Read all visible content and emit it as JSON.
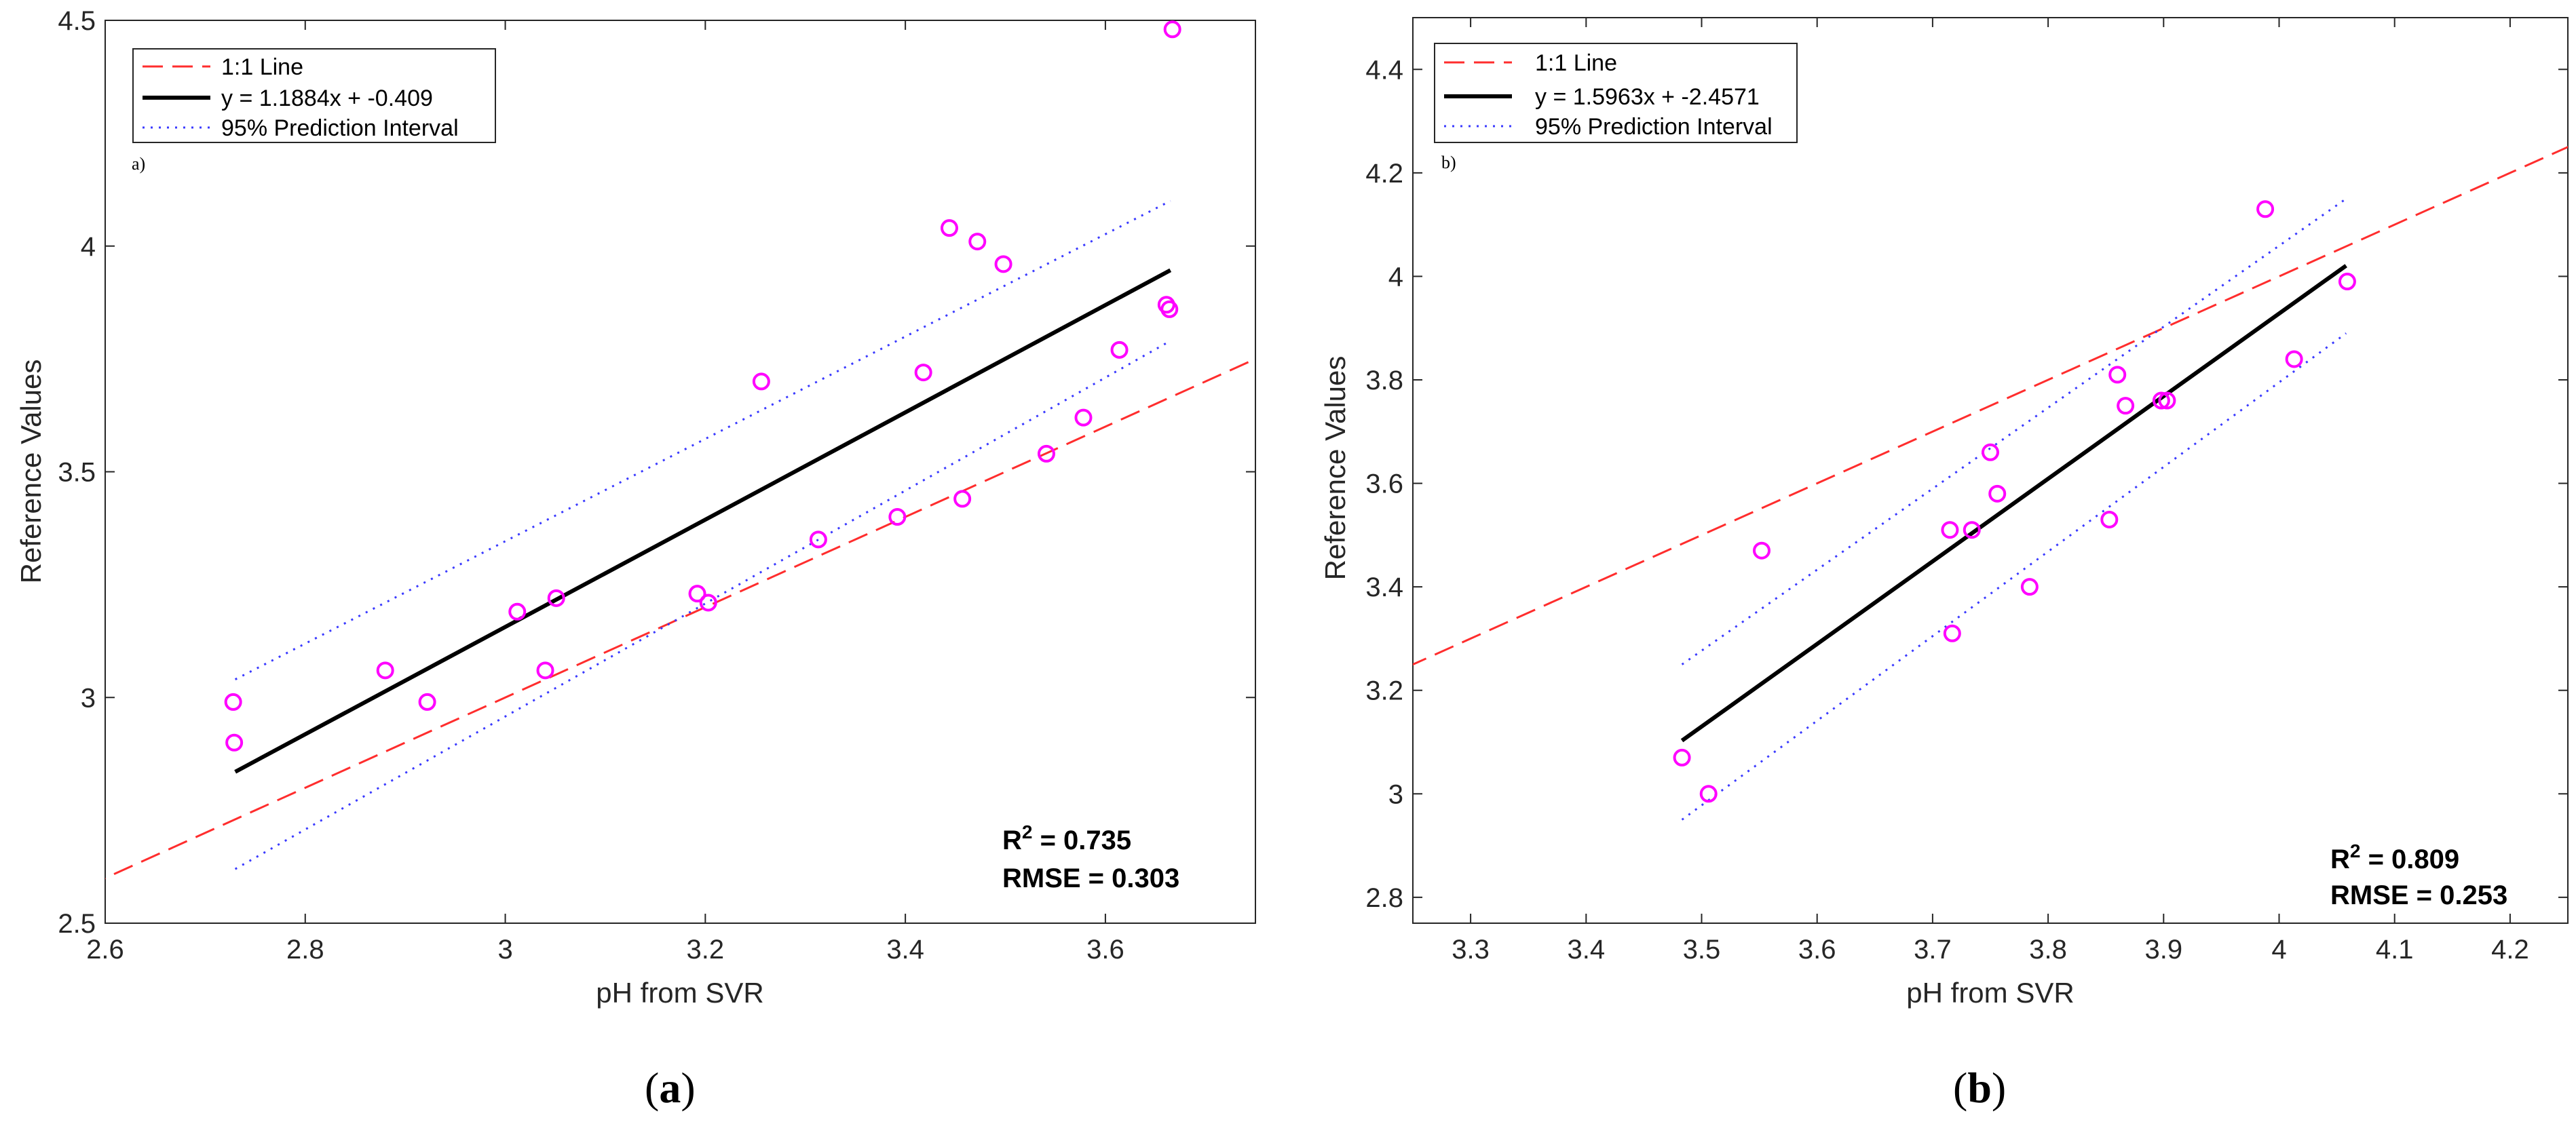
{
  "chart_data": [
    {
      "type": "scatter",
      "panel_tag": "a)",
      "caption_open": "(",
      "caption": "a",
      "caption_close": ")",
      "xlabel": "pH from SVR",
      "ylabel": "Reference Values",
      "xlim": [
        2.6,
        3.75
      ],
      "ylim": [
        2.5,
        4.5
      ],
      "xticks": [
        2.6,
        2.8,
        3.0,
        3.2,
        3.4,
        3.6
      ],
      "xtick_labels": [
        "2.6",
        "2.8",
        "3",
        "3.2",
        "3.4",
        "3.6"
      ],
      "yticks": [
        2.5,
        3.0,
        3.5,
        4.0,
        4.5
      ],
      "ytick_labels": [
        "2.5",
        "3",
        "3.5",
        "4",
        "4.5"
      ],
      "legend": [
        "1:1 Line",
        "y = 1.1884x + -0.409",
        "95% Prediction Interval"
      ],
      "legend_position": "top-left",
      "r2_label": "R",
      "r2_sup": "2",
      "r2_value": " = 0.735",
      "rmse_text": "RMSE  = 0.303",
      "fit": {
        "slope": 1.1884,
        "intercept": -0.409,
        "x_range": [
          2.73,
          3.665
        ]
      },
      "prediction_interval": {
        "upper": [
          [
            2.73,
            3.04
          ],
          [
            3.665,
            4.1
          ]
        ],
        "lower": [
          [
            2.73,
            2.62
          ],
          [
            3.665,
            3.79
          ]
        ]
      },
      "points": [
        {
          "x": 2.728,
          "y": 2.99
        },
        {
          "x": 2.729,
          "y": 2.9
        },
        {
          "x": 2.88,
          "y": 3.06
        },
        {
          "x": 2.922,
          "y": 2.99
        },
        {
          "x": 3.012,
          "y": 3.19
        },
        {
          "x": 3.04,
          "y": 3.06
        },
        {
          "x": 3.051,
          "y": 3.22
        },
        {
          "x": 3.192,
          "y": 3.23
        },
        {
          "x": 3.203,
          "y": 3.21
        },
        {
          "x": 3.256,
          "y": 3.7
        },
        {
          "x": 3.313,
          "y": 3.35
        },
        {
          "x": 3.392,
          "y": 3.4
        },
        {
          "x": 3.418,
          "y": 3.72
        },
        {
          "x": 3.444,
          "y": 4.04
        },
        {
          "x": 3.457,
          "y": 3.44
        },
        {
          "x": 3.472,
          "y": 4.01
        },
        {
          "x": 3.498,
          "y": 3.96
        },
        {
          "x": 3.541,
          "y": 3.54
        },
        {
          "x": 3.578,
          "y": 3.62
        },
        {
          "x": 3.614,
          "y": 3.77
        },
        {
          "x": 3.661,
          "y": 3.87
        },
        {
          "x": 3.664,
          "y": 3.86
        },
        {
          "x": 3.667,
          "y": 4.48
        }
      ]
    },
    {
      "type": "scatter",
      "panel_tag": "b)",
      "caption_open": "(",
      "caption": "b",
      "caption_close": ")",
      "xlabel": "pH from SVR",
      "ylabel": "Reference Values",
      "xlim": [
        3.25,
        4.25
      ],
      "ylim": [
        2.75,
        4.5
      ],
      "xticks": [
        3.3,
        3.4,
        3.5,
        3.6,
        3.7,
        3.8,
        3.9,
        4.0,
        4.1,
        4.2
      ],
      "xtick_labels": [
        "3.3",
        "3.4",
        "3.5",
        "3.6",
        "3.7",
        "3.8",
        "3.9",
        "4",
        "4.1",
        "4.2"
      ],
      "yticks": [
        2.8,
        3.0,
        3.2,
        3.4,
        3.6,
        3.8,
        4.0,
        4.2,
        4.4
      ],
      "ytick_labels": [
        "2.8",
        "3",
        "3.2",
        "3.4",
        "3.6",
        "3.8",
        "4",
        "4.2",
        "4.4"
      ],
      "legend": [
        "1:1 Line",
        "y = 1.5963x + -2.4571",
        "95% Prediction Interval"
      ],
      "legend_position": "top-left",
      "r2_label": "R",
      "r2_sup": "2",
      "r2_value": " = 0.809",
      "rmse_text": "RMSE  = 0.253",
      "fit": {
        "slope": 1.5963,
        "intercept": -2.4571,
        "x_range": [
          3.483,
          4.058
        ]
      },
      "prediction_interval": {
        "upper": [
          [
            3.483,
            3.25
          ],
          [
            4.058,
            4.15
          ]
        ],
        "lower": [
          [
            3.483,
            2.95
          ],
          [
            4.058,
            3.89
          ]
        ]
      },
      "points": [
        {
          "x": 3.483,
          "y": 3.07
        },
        {
          "x": 3.506,
          "y": 3.0
        },
        {
          "x": 3.552,
          "y": 3.47
        },
        {
          "x": 3.715,
          "y": 3.51
        },
        {
          "x": 3.717,
          "y": 3.31
        },
        {
          "x": 3.734,
          "y": 3.51
        },
        {
          "x": 3.75,
          "y": 3.66
        },
        {
          "x": 3.756,
          "y": 3.58
        },
        {
          "x": 3.784,
          "y": 3.4
        },
        {
          "x": 3.853,
          "y": 3.53
        },
        {
          "x": 3.86,
          "y": 3.81
        },
        {
          "x": 3.867,
          "y": 3.75
        },
        {
          "x": 3.898,
          "y": 3.76
        },
        {
          "x": 3.903,
          "y": 3.76
        },
        {
          "x": 3.988,
          "y": 4.13
        },
        {
          "x": 4.013,
          "y": 3.84
        },
        {
          "x": 4.059,
          "y": 3.99
        }
      ]
    }
  ],
  "colors": {
    "identity_line": "#ff2d2d",
    "fit_line": "#000000",
    "interval_line": "#3a3aff",
    "marker": "#ff00ff",
    "axes": "#262626"
  }
}
